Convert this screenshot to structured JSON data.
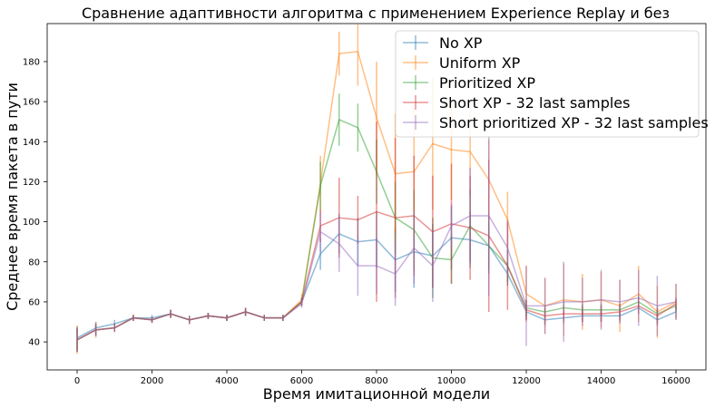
{
  "chart_data": {
    "type": "line",
    "title": "Сравнение адаптивности алгоритма с применением Experience Replay и без",
    "xlabel": "Время имитационной модели",
    "ylabel": "Среднее время пакета в пути",
    "xlim": [
      -800,
      16800
    ],
    "ylim": [
      26,
      199
    ],
    "xticks": [
      0,
      2000,
      4000,
      6000,
      8000,
      10000,
      12000,
      14000,
      16000
    ],
    "yticks": [
      40,
      60,
      80,
      100,
      120,
      140,
      160,
      180
    ],
    "legend_position": "top-right",
    "grid": false,
    "error_bars": true,
    "x": [
      0,
      500,
      1000,
      1500,
      2000,
      2500,
      3000,
      3500,
      4000,
      4500,
      5000,
      5500,
      6000,
      6500,
      7000,
      7500,
      8000,
      8500,
      9000,
      9500,
      10000,
      10500,
      11000,
      11500,
      12000,
      12500,
      13000,
      13500,
      14000,
      14500,
      15000,
      15500,
      16000
    ],
    "series": [
      {
        "name": "No XP",
        "color": "#1f77b4",
        "values": [
          42,
          47,
          49,
          52,
          52,
          54,
          51,
          53,
          52,
          55,
          52,
          52,
          60,
          84,
          94,
          90,
          91,
          81,
          85,
          83,
          92,
          91,
          88,
          74,
          55,
          51,
          52,
          53,
          53,
          53,
          57,
          51,
          55
        ],
        "errors": [
          6,
          3,
          2,
          1.5,
          1.5,
          2,
          2,
          1.5,
          1.5,
          2,
          1.5,
          1.5,
          2,
          8,
          10,
          12,
          14,
          16,
          18,
          16,
          16,
          14,
          12,
          6,
          4,
          3,
          3,
          3,
          3,
          3,
          3,
          3,
          3
        ]
      },
      {
        "name": "Uniform XP",
        "color": "#ff7f0e",
        "values": [
          41,
          46,
          47,
          52,
          51,
          54,
          51,
          53,
          52,
          55,
          52,
          52,
          61,
          119,
          184,
          185,
          152,
          124,
          125,
          139,
          136,
          135,
          121,
          101,
          64,
          58,
          61,
          60,
          61,
          58,
          64,
          55,
          60
        ],
        "errors": [
          7,
          4,
          2,
          1.5,
          1.5,
          2,
          2,
          1.5,
          1.5,
          2,
          1.5,
          1.5,
          3,
          14,
          11,
          17,
          28,
          30,
          32,
          33,
          25,
          22,
          20,
          14,
          14,
          14,
          18,
          14,
          14,
          13,
          14,
          13,
          9
        ]
      },
      {
        "name": "Prioritized XP",
        "color": "#2ca02c",
        "values": [
          41,
          46,
          47,
          52,
          51,
          54,
          51,
          53,
          52,
          55,
          52,
          52,
          60,
          118,
          151,
          147,
          125,
          102,
          96,
          82,
          81,
          98,
          88,
          78,
          57,
          55,
          57,
          56,
          56,
          56,
          60,
          54,
          58
        ],
        "errors": [
          6,
          3,
          2,
          1.5,
          1.5,
          2,
          2,
          1.5,
          1.5,
          2,
          1.5,
          1.5,
          2,
          12,
          13,
          12,
          16,
          18,
          20,
          20,
          12,
          18,
          14,
          8,
          4,
          3,
          3,
          3,
          3,
          3,
          3,
          3,
          3
        ]
      },
      {
        "name": "Short XP - 32 last samples",
        "color": "#d62728",
        "values": [
          41,
          46,
          47,
          52,
          51,
          54,
          51,
          53,
          52,
          55,
          52,
          52,
          60,
          98,
          102,
          101,
          105,
          102,
          103,
          95,
          99,
          97,
          93,
          78,
          56,
          53,
          54,
          54,
          54,
          55,
          58,
          53,
          59
        ],
        "errors": [
          6,
          3,
          2,
          1.5,
          1.5,
          2,
          2,
          1.5,
          1.5,
          2,
          1.5,
          1.5,
          2,
          8,
          20,
          12,
          45,
          40,
          30,
          28,
          30,
          26,
          38,
          22,
          5,
          4,
          4,
          4,
          4,
          4,
          4,
          4,
          3
        ]
      },
      {
        "name": "Short prioritized XP - 32 last samples",
        "color": "#9467bd",
        "values": [
          41,
          46,
          47,
          52,
          51,
          54,
          51,
          53,
          52,
          55,
          52,
          52,
          59,
          95,
          89,
          78,
          78,
          74,
          87,
          78,
          98,
          103,
          103,
          87,
          58,
          58,
          60,
          60,
          61,
          60,
          62,
          58,
          60
        ],
        "errors": [
          6,
          3,
          2,
          1.5,
          1.5,
          2,
          2,
          1.5,
          1.5,
          2,
          1.5,
          1.5,
          2,
          10,
          14,
          15,
          14,
          16,
          18,
          18,
          11,
          24,
          40,
          14,
          20,
          14,
          20,
          12,
          15,
          11,
          14,
          15,
          9
        ]
      }
    ]
  }
}
